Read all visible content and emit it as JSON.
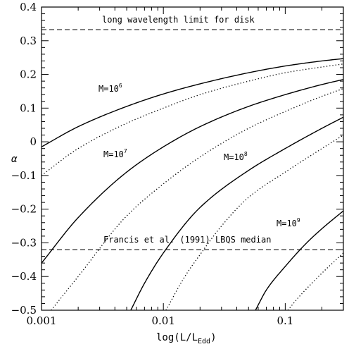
{
  "chart_data": {
    "type": "line",
    "xlabel": "log(L/L",
    "xlabel_sub": "Edd",
    "xlabel_close": ")",
    "ylabel": "α",
    "xscale": "log",
    "xlim": [
      0.001,
      0.3
    ],
    "ylim": [
      -0.5,
      0.4
    ],
    "x_ticks": [
      {
        "value": 0.001,
        "label": "0.001"
      },
      {
        "value": 0.01,
        "label": "0.01"
      },
      {
        "value": 0.1,
        "label": "0.1"
      }
    ],
    "y_ticks": [
      {
        "value": -0.5,
        "label": "−0.5"
      },
      {
        "value": -0.4,
        "label": "−0.4"
      },
      {
        "value": -0.3,
        "label": "−0.3"
      },
      {
        "value": -0.2,
        "label": "−0.2"
      },
      {
        "value": -0.1,
        "label": "−0.1"
      },
      {
        "value": 0,
        "label": "0"
      },
      {
        "value": 0.1,
        "label": "0.1"
      },
      {
        "value": 0.2,
        "label": "0.2"
      },
      {
        "value": 0.3,
        "label": "0.3"
      },
      {
        "value": 0.4,
        "label": "0.4"
      }
    ],
    "reference_lines": [
      {
        "y": 0.333,
        "label": "long wavelength limit for disk",
        "style": "dashed"
      },
      {
        "y": -0.32,
        "label": "Francis et al. (1991) LBQS median",
        "style": "dashed"
      }
    ],
    "mass_labels": [
      {
        "text": "M=10",
        "exp": "6"
      },
      {
        "text": "M=10",
        "exp": "7"
      },
      {
        "text": "M=10",
        "exp": "8"
      },
      {
        "text": "M=10",
        "exp": "9"
      }
    ],
    "series": [
      {
        "style": "solid",
        "x": [
          0.001,
          0.002,
          0.005,
          0.01,
          0.02,
          0.05,
          0.1,
          0.2,
          0.3
        ],
        "y": [
          -0.015,
          0.045,
          0.105,
          0.142,
          0.172,
          0.205,
          0.225,
          0.24,
          0.247
        ]
      },
      {
        "style": "dotted",
        "x": [
          0.001,
          0.002,
          0.005,
          0.01,
          0.02,
          0.05,
          0.1,
          0.2,
          0.3
        ],
        "y": [
          -0.1,
          -0.02,
          0.055,
          0.1,
          0.14,
          0.18,
          0.205,
          0.222,
          0.231
        ]
      },
      {
        "style": "solid",
        "x": [
          0.001,
          0.002,
          0.005,
          0.01,
          0.02,
          0.05,
          0.1,
          0.2,
          0.3
        ],
        "y": [
          -0.36,
          -0.225,
          -0.09,
          -0.015,
          0.045,
          0.105,
          0.14,
          0.17,
          0.185
        ]
      },
      {
        "style": "dotted",
        "x": [
          0.0012,
          0.002,
          0.005,
          0.01,
          0.02,
          0.05,
          0.1,
          0.2,
          0.3
        ],
        "y": [
          -0.5,
          -0.4,
          -0.22,
          -0.125,
          -0.045,
          0.04,
          0.09,
          0.135,
          0.158
        ]
      },
      {
        "style": "solid",
        "x": [
          0.0054,
          0.007,
          0.01,
          0.02,
          0.05,
          0.1,
          0.2,
          0.3
        ],
        "y": [
          -0.5,
          -0.42,
          -0.33,
          -0.195,
          -0.085,
          -0.02,
          0.04,
          0.073
        ]
      },
      {
        "style": "dotted",
        "x": [
          0.0105,
          0.015,
          0.02,
          0.03,
          0.05,
          0.1,
          0.2,
          0.3
        ],
        "y": [
          -0.5,
          -0.4,
          -0.335,
          -0.25,
          -0.165,
          -0.09,
          -0.02,
          0.02
        ]
      },
      {
        "style": "solid",
        "x": [
          0.057,
          0.07,
          0.1,
          0.15,
          0.2,
          0.3
        ],
        "y": [
          -0.5,
          -0.44,
          -0.37,
          -0.3,
          -0.258,
          -0.205
        ]
      },
      {
        "style": "dotted",
        "x": [
          0.105,
          0.13,
          0.2,
          0.3
        ],
        "y": [
          -0.5,
          -0.46,
          -0.39,
          -0.33
        ]
      }
    ]
  }
}
